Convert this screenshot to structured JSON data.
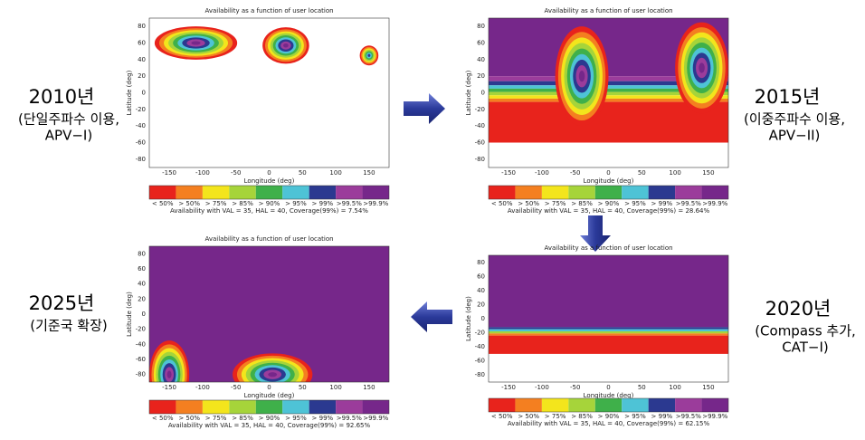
{
  "map": {
    "title": "Availability as a function of user location",
    "xlabel": "Longitude (deg)",
    "ylabel": "Latitude (deg)",
    "xticks": [
      -150,
      -100,
      -50,
      0,
      50,
      100,
      150
    ],
    "yticks": [
      80,
      60,
      40,
      20,
      0,
      -20,
      -40,
      -60,
      -80
    ],
    "legend_labels": [
      "< 50%",
      "> 50%",
      "> 75%",
      "> 85%",
      "> 90%",
      "> 95%",
      "> 99%",
      ">99.5%",
      ">99.9%"
    ],
    "legend_colors": [
      "#e8231c",
      "#f47f20",
      "#f3e51c",
      "#a6d43a",
      "#3fb04a",
      "#4ec3d6",
      "#2b3990",
      "#9b3c9b",
      "#76278a"
    ]
  },
  "panels": [
    {
      "year": "2010년",
      "note": [
        "(단일주파수 이용,",
        "APV−I)"
      ],
      "caption": "Availability with VAL = 35,  HAL = 40, Coverage(99%) = 7.54%"
    },
    {
      "year": "2015년",
      "note": [
        "(이중주파수 이용,",
        "APV−II)"
      ],
      "caption": "Availability with VAL = 35,  HAL = 40, Coverage(99%) = 28.64%"
    },
    {
      "year": "2020년",
      "note": [
        "(Compass 추가,",
        "CAT−I)"
      ],
      "caption": "Availability with VAL = 35,  HAL = 40, Coverage(99%) = 62.15%"
    },
    {
      "year": "2025년",
      "note": [
        "(기준국 확장)"
      ],
      "caption": "Availability with VAL = 35,  HAL = 40, Coverage(99%) = 92.65%"
    }
  ]
}
